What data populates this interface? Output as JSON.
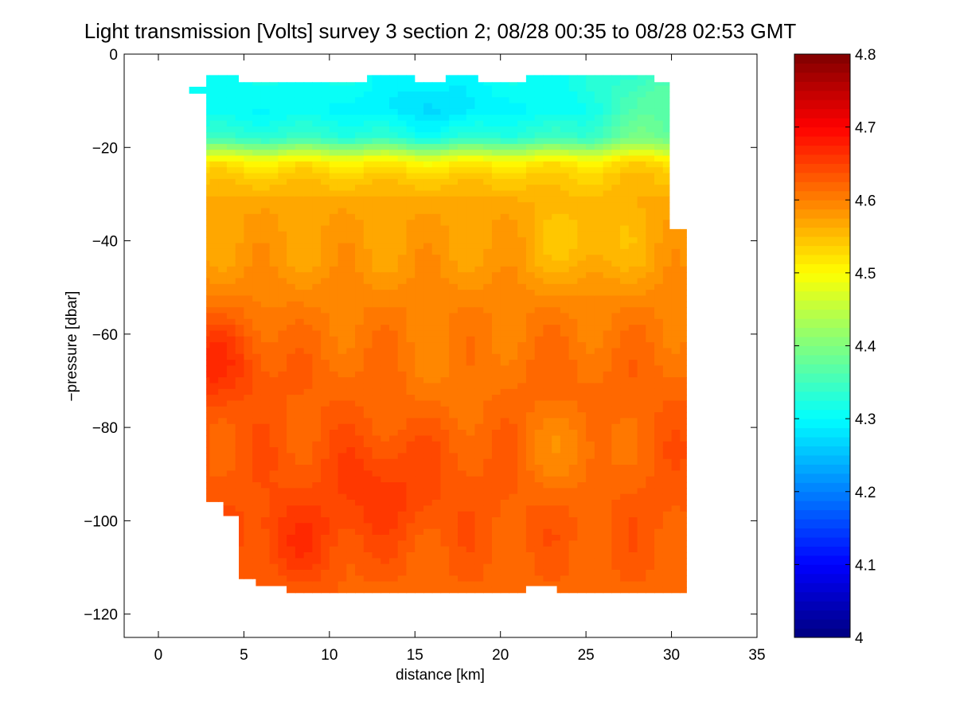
{
  "chart_data": {
    "type": "heatmap",
    "title": "Light transmission [Volts] survey 3 section 2; 08/28 00:35 to 08/28 02:53 GMT",
    "xlabel": "distance [km]",
    "ylabel": "−pressure [dbar]",
    "xlim": [
      -2,
      35
    ],
    "ylim": [
      -125,
      0
    ],
    "x_ticks": [
      0,
      5,
      10,
      15,
      20,
      25,
      30,
      35
    ],
    "y_ticks": [
      0,
      -20,
      -40,
      -60,
      -80,
      -100,
      -120
    ],
    "x_tick_labels": [
      "0",
      "5",
      "10",
      "15",
      "20",
      "25",
      "30",
      "35"
    ],
    "y_tick_labels": [
      "0",
      "−20",
      "−40",
      "−60",
      "−80",
      "−100",
      "−120"
    ],
    "colorbar": {
      "range": [
        4.0,
        4.8
      ],
      "ticks": [
        4.0,
        4.1,
        4.2,
        4.3,
        4.4,
        4.5,
        4.6,
        4.7,
        4.8
      ],
      "tick_labels": [
        "4",
        "4.1",
        "4.2",
        "4.3",
        "4.4",
        "4.5",
        "4.6",
        "4.7",
        "4.8"
      ],
      "colormap": "jet",
      "levels": 64
    },
    "data_extent": {
      "top_outline": [
        [
          1.8,
          -7
        ],
        [
          2.8,
          -7
        ],
        [
          2.8,
          -4.5
        ],
        [
          4.7,
          -4.5
        ],
        [
          4.7,
          -6
        ],
        [
          12.2,
          -6
        ],
        [
          12.2,
          -4.5
        ],
        [
          15,
          -4.5
        ],
        [
          15,
          -6
        ],
        [
          16.8,
          -6
        ],
        [
          16.8,
          -4.5
        ],
        [
          18.7,
          -4.5
        ],
        [
          18.7,
          -6
        ],
        [
          21.5,
          -6
        ],
        [
          21.5,
          -4.5
        ],
        [
          29,
          -4.5
        ],
        [
          29,
          -6
        ],
        [
          29.9,
          -6
        ]
      ],
      "right_outline": [
        [
          29.9,
          -6
        ],
        [
          29.9,
          -37.5
        ],
        [
          30.9,
          -37.5
        ],
        [
          30.9,
          -115.5
        ]
      ],
      "bottom_outline": [
        [
          30.9,
          -115.5
        ],
        [
          23.3,
          -115.5
        ],
        [
          23.3,
          -114
        ],
        [
          21.5,
          -114
        ],
        [
          21.5,
          -115.5
        ],
        [
          7.5,
          -115.5
        ],
        [
          7.5,
          -114
        ],
        [
          5.7,
          -114
        ],
        [
          5.7,
          -112.5
        ],
        [
          4.7,
          -112.5
        ],
        [
          4.7,
          -99
        ],
        [
          3.8,
          -99
        ],
        [
          3.8,
          -96
        ],
        [
          2.8,
          -96
        ]
      ],
      "left_outline": [
        [
          2.8,
          -96
        ],
        [
          2.8,
          -8.5
        ],
        [
          1.8,
          -8.5
        ],
        [
          1.8,
          -7
        ]
      ]
    },
    "depth_profile": [
      {
        "depth": -5,
        "value": 4.31
      },
      {
        "depth": -12,
        "value": 4.3
      },
      {
        "depth": -18,
        "value": 4.34
      },
      {
        "depth": -21,
        "value": 4.44
      },
      {
        "depth": -23,
        "value": 4.51
      },
      {
        "depth": -26,
        "value": 4.54
      },
      {
        "depth": -32,
        "value": 4.57
      },
      {
        "depth": -45,
        "value": 4.58
      },
      {
        "depth": -55,
        "value": 4.6
      },
      {
        "depth": -70,
        "value": 4.62
      },
      {
        "depth": -85,
        "value": 4.63
      },
      {
        "depth": -100,
        "value": 4.63
      },
      {
        "depth": -115,
        "value": 4.62
      }
    ],
    "features": [
      {
        "description": "cyan low-transmission surface layer, minimum near x=16 km",
        "x": 16,
        "depth": -12,
        "value": 4.27
      },
      {
        "description": "fresher green near-surface water at east end",
        "x": 29,
        "depth": -12,
        "value": 4.38
      },
      {
        "description": "yellow-orange high band at mid depth",
        "x": 25,
        "depth": -40,
        "value": 4.54
      },
      {
        "description": "red-orange maximum at western edge",
        "x": 3,
        "depth": -65,
        "value": 4.67
      },
      {
        "description": "red-orange deep core",
        "x": 13,
        "depth": -93,
        "value": 4.66
      },
      {
        "description": "red-orange deep core",
        "x": 8,
        "depth": -105,
        "value": 4.66
      },
      {
        "description": "lighter orange vertical column",
        "x": 17,
        "depth": -70,
        "value": 4.6
      },
      {
        "description": "lighter orange vertical column",
        "x": 24,
        "depth": -85,
        "value": 4.59
      }
    ]
  }
}
